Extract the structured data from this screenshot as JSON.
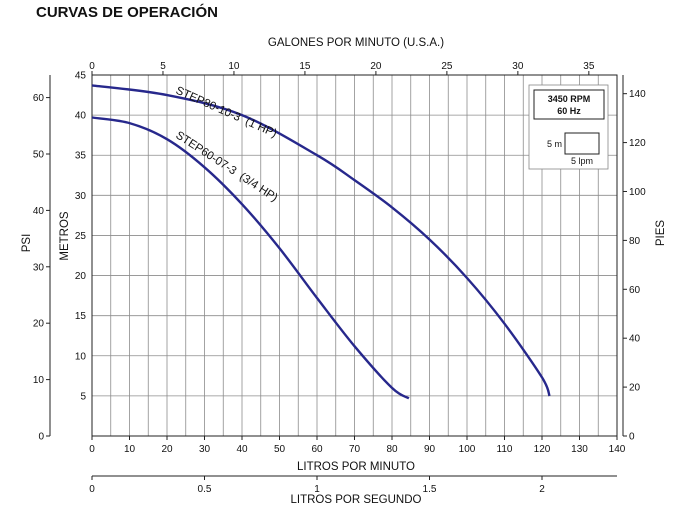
{
  "title": "CURVAS DE OPERACIÓN",
  "chart_data": {
    "type": "line",
    "xlabel_bottom": "LITROS POR MINUTO",
    "xlabel_top": "GALONES POR MINUTO (U.S.A.)",
    "xlabel_lps": "LITROS POR SEGUNDO",
    "ylabel_metros": "METROS",
    "ylabel_psi": "PSI",
    "ylabel_pies": "PIES",
    "xlim": [
      0,
      140
    ],
    "ylim": [
      0,
      45
    ],
    "x_ticks_lpm": [
      "0",
      "10",
      "20",
      "30",
      "40",
      "50",
      "60",
      "70",
      "80",
      "90",
      "100",
      "110",
      "120",
      "130",
      "140"
    ],
    "x_ticks_gpm": [
      "0",
      "5",
      "10",
      "15",
      "20",
      "25",
      "30",
      "35"
    ],
    "gpm_positions": [
      0,
      5,
      10,
      15,
      20,
      25,
      30,
      35
    ],
    "x_ticks_lps": [
      "0",
      "0.5",
      "1",
      "1.5",
      "2"
    ],
    "lps_positions": [
      0,
      0.5,
      1,
      1.5,
      2
    ],
    "y_ticks_metros": [
      "5",
      "10",
      "15",
      "20",
      "25",
      "30",
      "35",
      "40",
      "45"
    ],
    "y_ticks_psi": [
      "0",
      "10",
      "20",
      "30",
      "40",
      "50",
      "60"
    ],
    "psi_positions": [
      0,
      10,
      20,
      30,
      40,
      50,
      60
    ],
    "y_ticks_pies": [
      "0",
      "20",
      "40",
      "60",
      "80",
      "100",
      "120",
      "140"
    ],
    "pies_positions": [
      0,
      20,
      40,
      60,
      80,
      100,
      120,
      140
    ],
    "series": [
      {
        "name": "STEP80-10-3  (1 HP)",
        "x": [
          0,
          20,
          40,
          60,
          70,
          80,
          90,
          100,
          110,
          120,
          122
        ],
        "y": [
          43.7,
          42.5,
          40.0,
          35.0,
          31.9,
          28.5,
          24.5,
          19.7,
          14.0,
          7.3,
          5.0
        ]
      },
      {
        "name": "STEP60-07-3  (3/4 HP)",
        "x": [
          0,
          10,
          20,
          30,
          40,
          50,
          60,
          70,
          80,
          84.5
        ],
        "y": [
          39.7,
          39.0,
          37.0,
          33.5,
          28.9,
          23.4,
          17.2,
          11.2,
          6.0,
          4.7
        ]
      }
    ],
    "legend": {
      "rpm": "3450 RPM",
      "hz": "60 Hz",
      "scale_v": "5 m",
      "scale_h": "5 lpm"
    }
  }
}
